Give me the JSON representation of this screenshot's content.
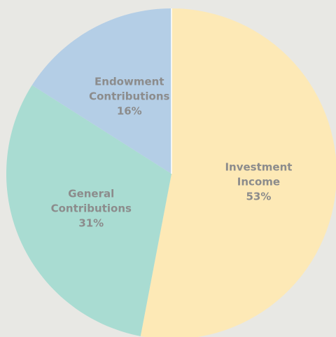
{
  "chart_data": {
    "type": "pie",
    "categories": [
      "Investment Income",
      "General Contributions",
      "Endowment Contributions"
    ],
    "values": [
      53,
      31,
      16
    ],
    "value_labels": [
      "53%",
      "31%",
      "16%"
    ],
    "colors": [
      "#fde9b6",
      "#a9dcd2",
      "#b4cee6"
    ]
  }
}
